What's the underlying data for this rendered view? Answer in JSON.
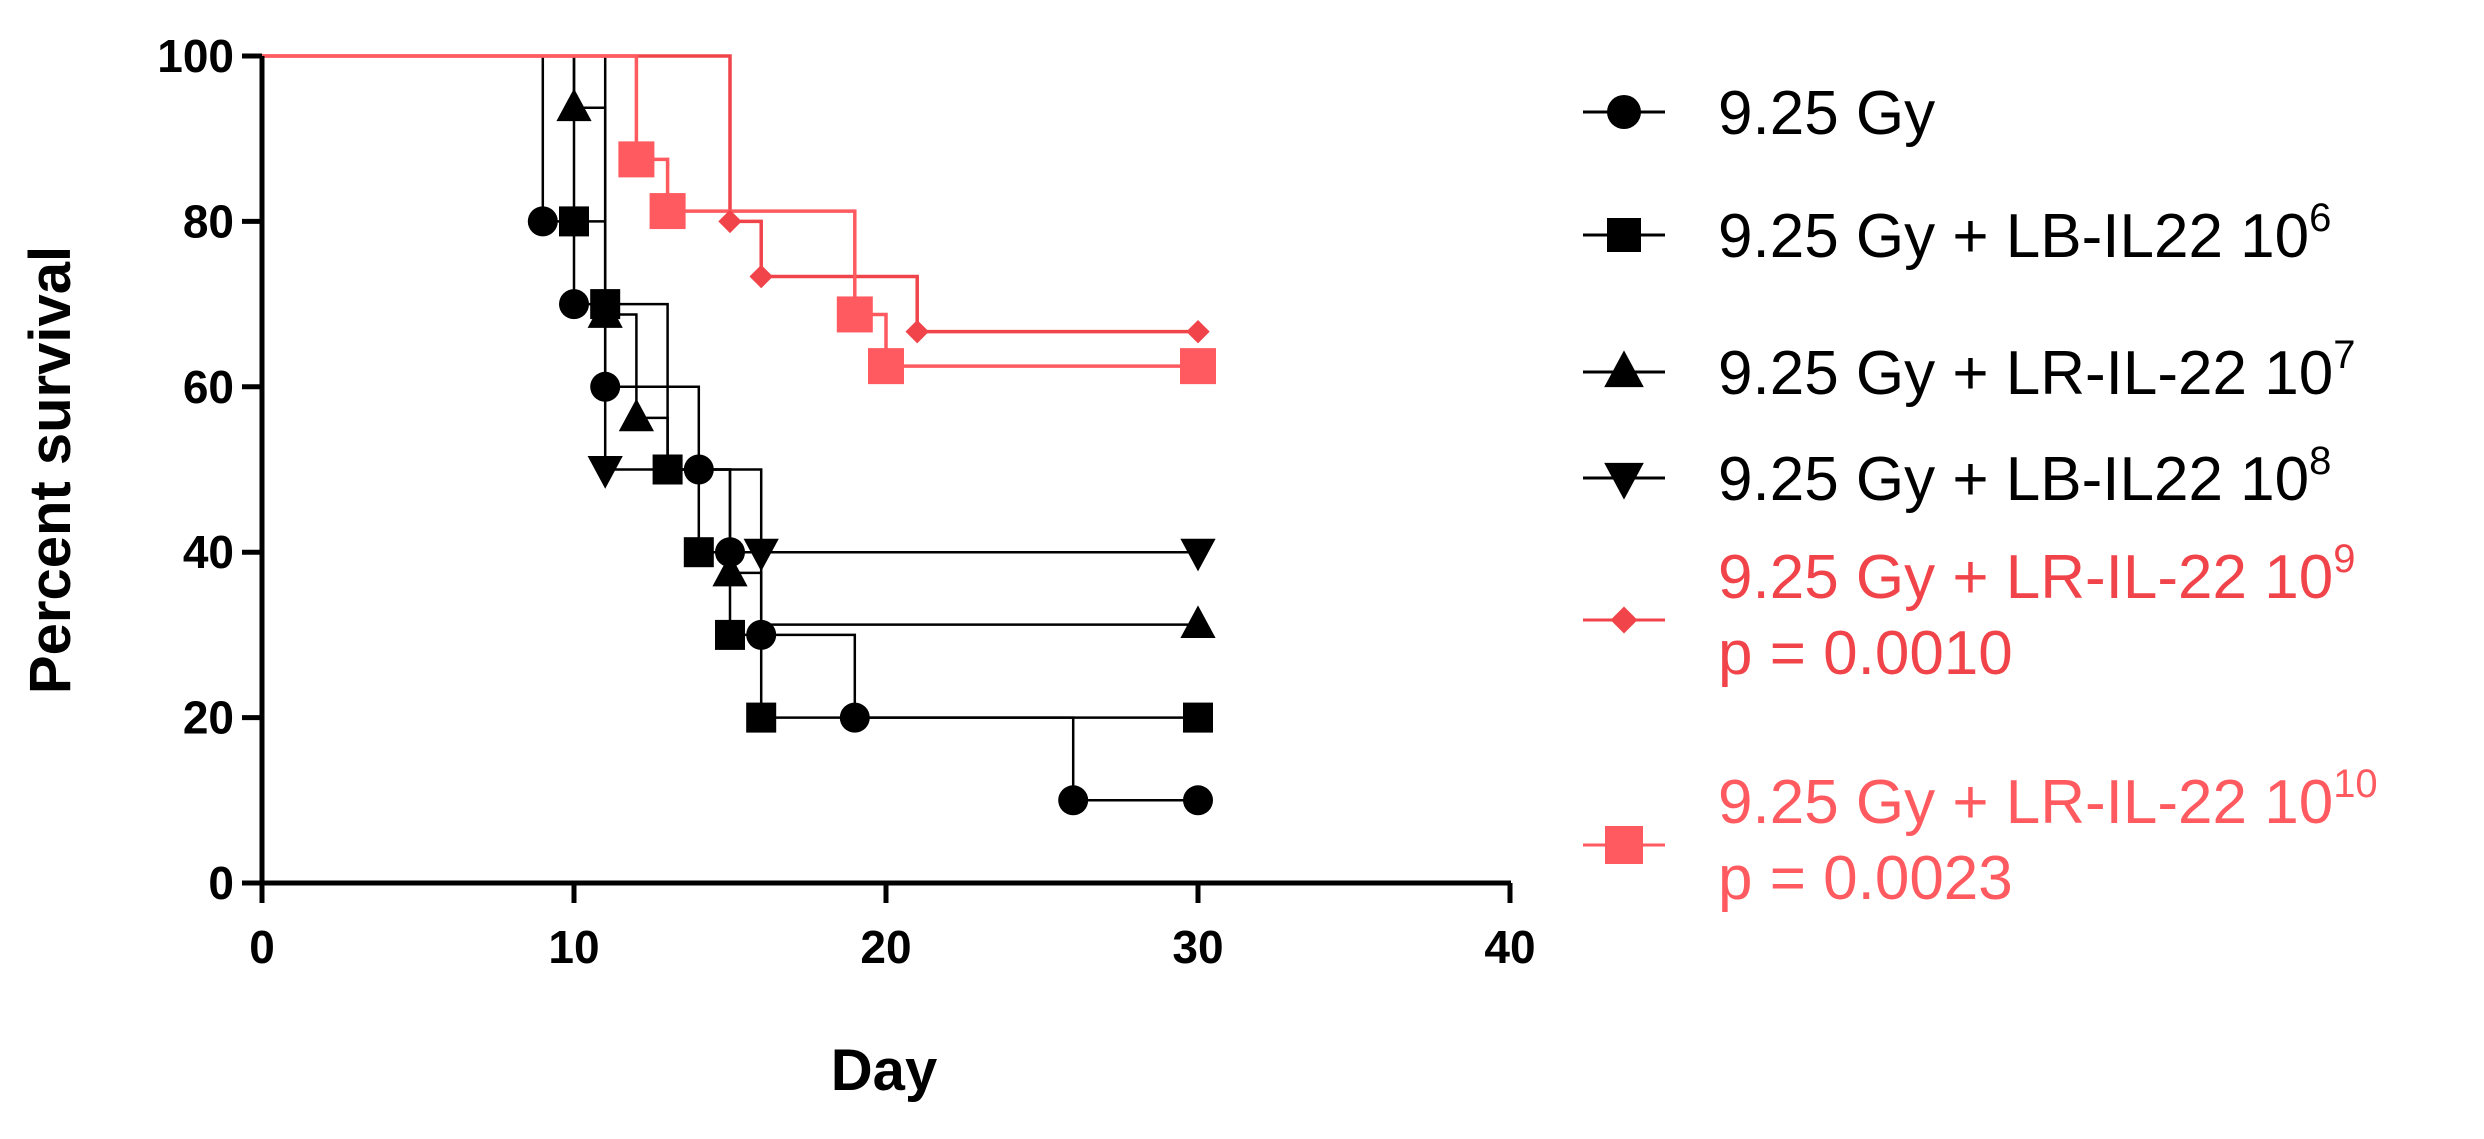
{
  "chart_data": {
    "type": "line",
    "subtype": "kaplan-meier-step",
    "xlabel": "Day",
    "ylabel": "Percent survival",
    "xlim": [
      0,
      40
    ],
    "ylim": [
      0,
      100
    ],
    "xticks": [
      0,
      10,
      20,
      30,
      40
    ],
    "yticks": [
      0,
      20,
      40,
      60,
      80,
      100
    ],
    "x_tick_labels": [
      "0",
      "10",
      "20",
      "30",
      "40"
    ],
    "y_tick_labels": [
      "0",
      "20",
      "40",
      "60",
      "80",
      "100"
    ],
    "grid": false,
    "legend_position": "right",
    "series": [
      {
        "name": "9.25 Gy",
        "label_main": "9.25 Gy",
        "label_sup": "",
        "pvalue": "",
        "color": "#000000",
        "marker": "circle",
        "steps": [
          [
            0,
            100
          ],
          [
            9,
            80
          ],
          [
            10,
            70
          ],
          [
            11,
            60
          ],
          [
            14,
            50
          ],
          [
            15,
            40
          ],
          [
            16,
            30
          ],
          [
            19,
            20
          ],
          [
            26,
            10
          ],
          [
            30,
            10
          ]
        ],
        "markers": [
          [
            9,
            80
          ],
          [
            10,
            70
          ],
          [
            11,
            60
          ],
          [
            14,
            50
          ],
          [
            15,
            40
          ],
          [
            16,
            30
          ],
          [
            19,
            20
          ],
          [
            26,
            10
          ],
          [
            30,
            10
          ]
        ]
      },
      {
        "name": "9.25 Gy + LB-IL22 10^6",
        "label_main": "9.25 Gy + LB-IL22 10",
        "label_sup": "6",
        "pvalue": "",
        "color": "#000000",
        "marker": "square",
        "steps": [
          [
            0,
            100
          ],
          [
            10,
            80
          ],
          [
            11,
            70
          ],
          [
            13,
            50
          ],
          [
            14,
            40
          ],
          [
            15,
            30
          ],
          [
            16,
            20
          ],
          [
            30,
            20
          ]
        ],
        "markers": [
          [
            10,
            80
          ],
          [
            11,
            70
          ],
          [
            13,
            50
          ],
          [
            14,
            40
          ],
          [
            15,
            30
          ],
          [
            16,
            20
          ],
          [
            30,
            20
          ]
        ]
      },
      {
        "name": "9.25 Gy + LR-IL-22 10^7",
        "label_main": "9.25 Gy + LR-IL-22 10",
        "label_sup": "7",
        "pvalue": "",
        "color": "#000000",
        "marker": "triangle-up",
        "steps": [
          [
            0,
            100
          ],
          [
            10,
            93.75
          ],
          [
            11,
            68.75
          ],
          [
            12,
            56.25
          ],
          [
            13,
            50
          ],
          [
            15,
            37.5
          ],
          [
            16,
            31.25
          ],
          [
            30,
            31.25
          ]
        ],
        "markers": [
          [
            10,
            93.75
          ],
          [
            11,
            68.75
          ],
          [
            12,
            56.25
          ],
          [
            15,
            37.5
          ],
          [
            30,
            31.25
          ]
        ]
      },
      {
        "name": "9.25 Gy + LB-IL22 10^8",
        "label_main": "9.25 Gy + LB-IL22 10",
        "label_sup": "8",
        "pvalue": "",
        "color": "#000000",
        "marker": "triangle-down",
        "steps": [
          [
            0,
            100
          ],
          [
            11,
            50
          ],
          [
            16,
            40
          ],
          [
            30,
            40
          ]
        ],
        "markers": [
          [
            11,
            50
          ],
          [
            16,
            40
          ],
          [
            30,
            40
          ]
        ]
      },
      {
        "name": "9.25 Gy + LR-IL-22 10^9",
        "label_main": "9.25 Gy + LR-IL-22 10",
        "label_sup": "9",
        "pvalue": "p = 0.0010",
        "color": "#f0444a",
        "marker": "diamond",
        "steps": [
          [
            0,
            100
          ],
          [
            15,
            80
          ],
          [
            16,
            73.33
          ],
          [
            21,
            66.67
          ],
          [
            30,
            66.67
          ]
        ],
        "markers": [
          [
            15,
            80
          ],
          [
            16,
            73.33
          ],
          [
            21,
            66.67
          ],
          [
            30,
            66.67
          ]
        ]
      },
      {
        "name": "9.25 Gy + LR-IL-22 10^10",
        "label_main": "9.25 Gy + LR-IL-22 10",
        "label_sup": "10",
        "pvalue": "p = 0.0023",
        "color": "#ff5a5f",
        "marker": "square",
        "steps": [
          [
            0,
            100
          ],
          [
            12,
            87.5
          ],
          [
            13,
            81.25
          ],
          [
            19,
            68.75
          ],
          [
            20,
            62.5
          ],
          [
            30,
            62.5
          ]
        ],
        "markers": [
          [
            12,
            87.5
          ],
          [
            13,
            81.25
          ],
          [
            19,
            68.75
          ],
          [
            20,
            62.5
          ],
          [
            30,
            62.5
          ]
        ]
      }
    ]
  }
}
